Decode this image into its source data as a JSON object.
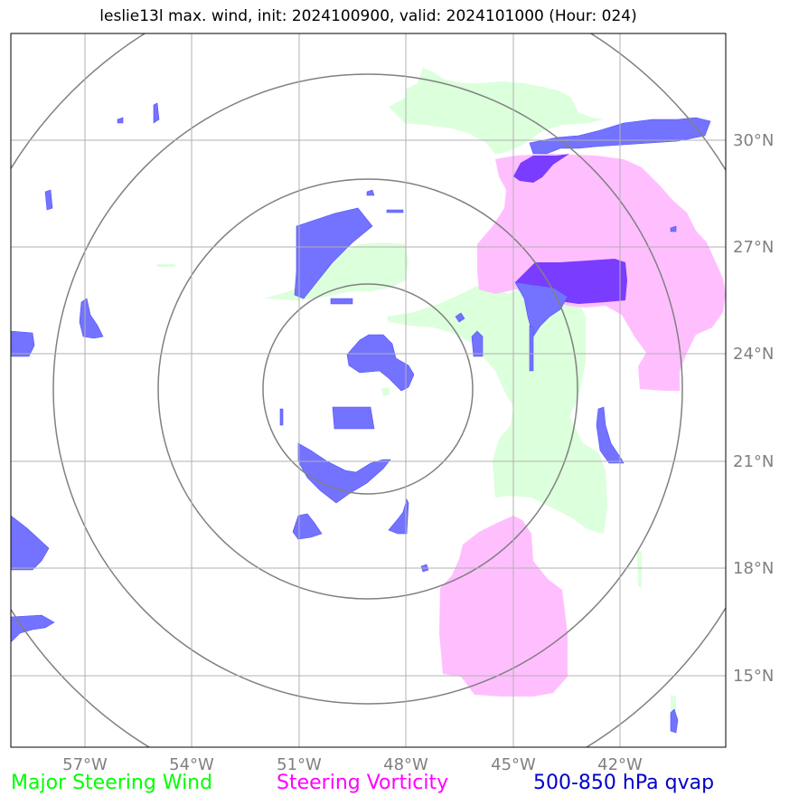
{
  "title": "leslie13l max. wind, init: 2024100900, valid: 2024101000 (Hour: 024)",
  "axes": {
    "lon_labels": [
      "57°W",
      "54°W",
      "51°W",
      "48°W",
      "45°W",
      "42°W"
    ],
    "lat_labels": [
      "30°N",
      "27°N",
      "24°N",
      "21°N",
      "18°N",
      "15°N"
    ]
  },
  "legend": {
    "green": "Major Steering Wind",
    "magenta": "Steering Vorticity",
    "blue": "500-850 hPa qvap"
  },
  "colors": {
    "green_fill": "#dcffdc",
    "magenta_fill": "#ffbfff",
    "blue_fill": "#7373ff",
    "purple_fill": "#7a3cff",
    "grid": "#b0b0b0",
    "rings": "#808080",
    "tick_label": "#808080"
  }
}
